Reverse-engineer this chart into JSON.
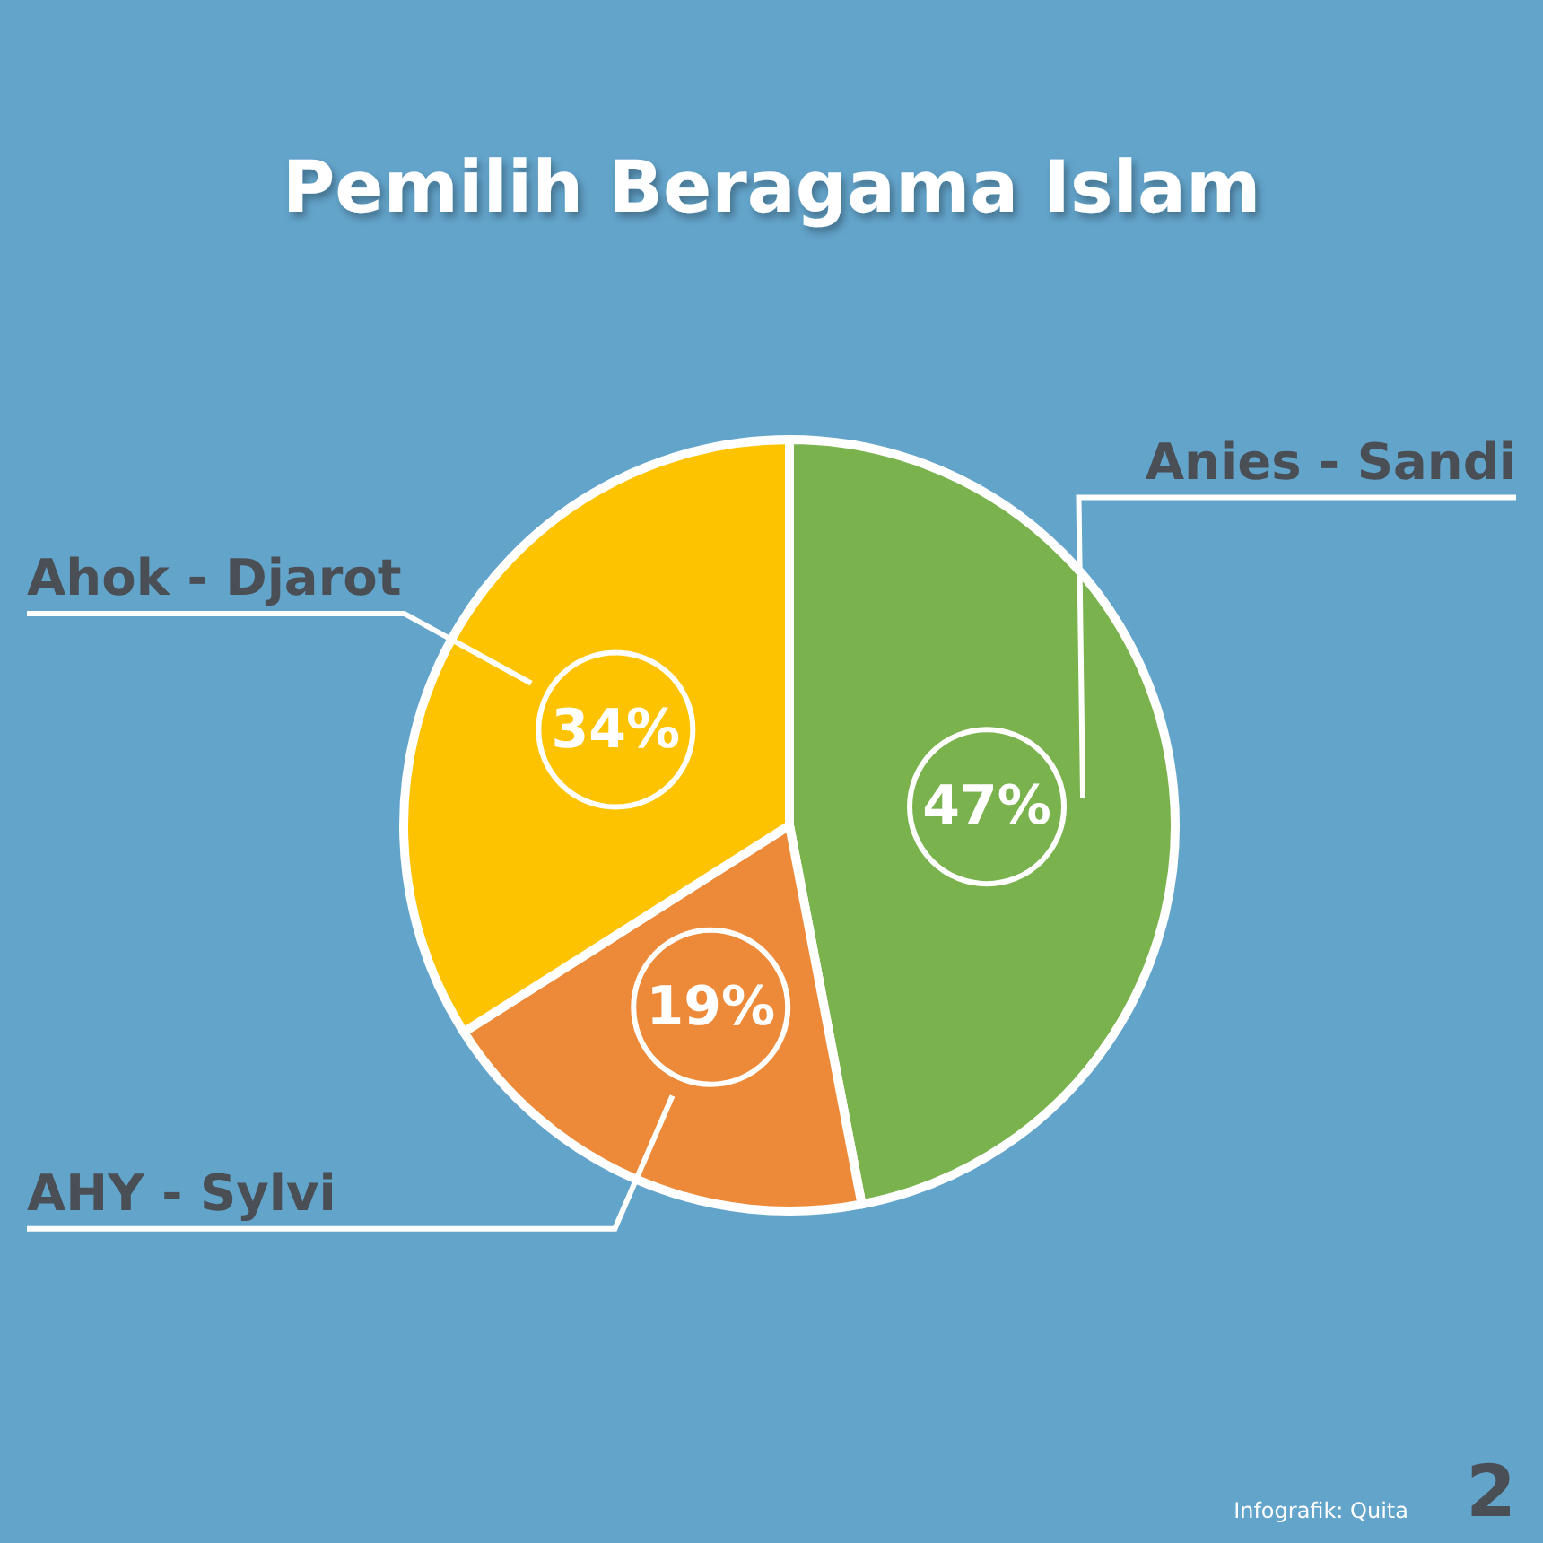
{
  "chart_data": {
    "type": "pie",
    "title": "Pemilih Beragama Islam",
    "categories": [
      "Anies - Sandi",
      "AHY - Sylvi",
      "Ahok - Djarot"
    ],
    "values": [
      47,
      19,
      34
    ],
    "colors": [
      "#7ab24e",
      "#ed8a3a",
      "#fdc300"
    ],
    "value_labels": [
      "47%",
      "19%",
      "34%"
    ],
    "legend": false,
    "annotations": [
      "Infografik: Quita",
      "2"
    ]
  }
}
